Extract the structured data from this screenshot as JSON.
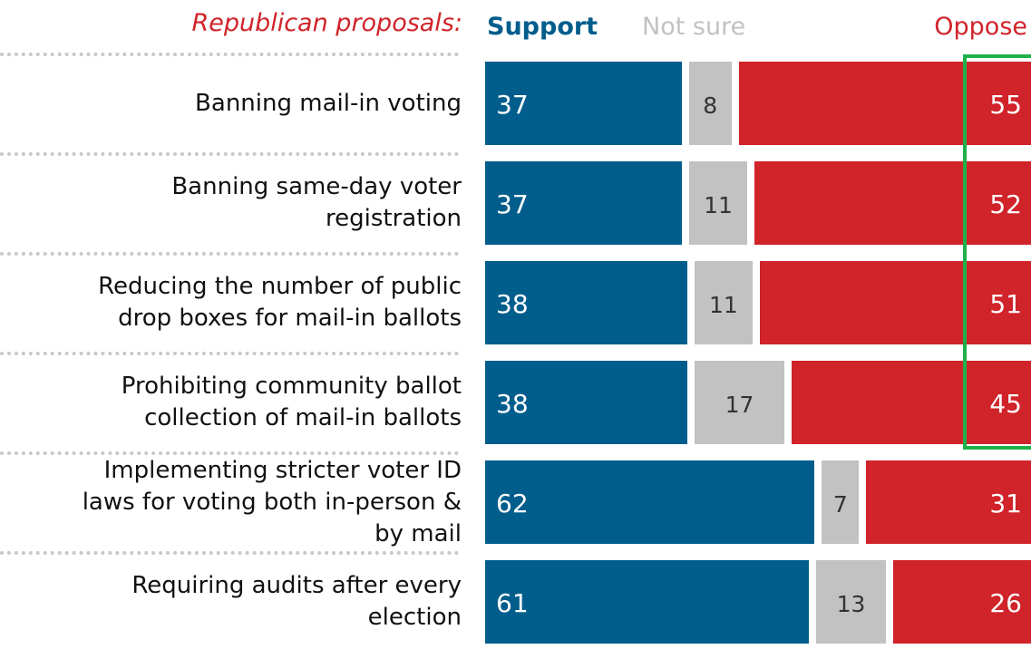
{
  "chart_data": {
    "type": "bar",
    "orientation": "horizontal-stacked",
    "section_title": "Republican proposals:",
    "categories": [
      "Banning mail-in voting",
      "Banning same-day voter\nregistration",
      "Reducing the number of public\ndrop boxes for mail-in ballots",
      "Prohibiting community ballot\ncollection of mail-in ballots",
      "Implementing stricter voter ID\nlaws for voting both in-person &\nby mail",
      "Requiring audits after every\nelection"
    ],
    "series": [
      {
        "name": "Support",
        "values": [
          37,
          37,
          38,
          38,
          62,
          61
        ],
        "color": "#005d8c"
      },
      {
        "name": "Not sure",
        "values": [
          8,
          11,
          11,
          17,
          7,
          13
        ],
        "color": "#c2c2c2"
      },
      {
        "name": "Oppose",
        "values": [
          55,
          52,
          51,
          45,
          31,
          26
        ],
        "color": "#d0232a"
      }
    ],
    "highlighted_series": "Oppose",
    "highlighted_rows": [
      0,
      1,
      2,
      3
    ],
    "highlight_color": "#1db14a"
  }
}
